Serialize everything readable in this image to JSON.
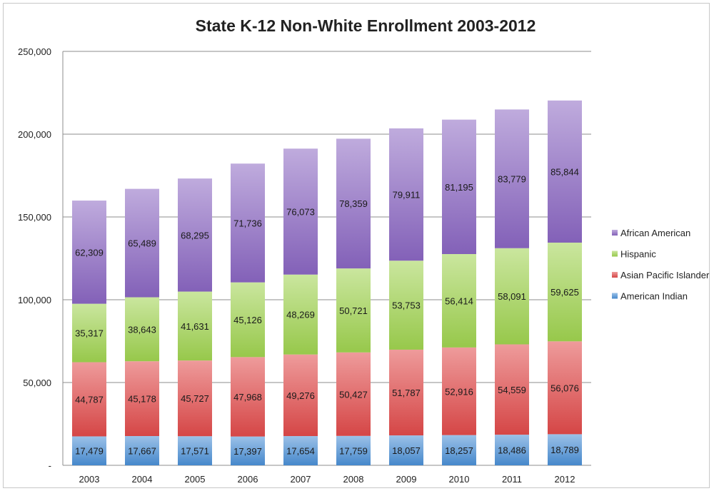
{
  "chart_data": {
    "type": "bar",
    "stacked": true,
    "title": "State K-12 Non-White Enrollment 2003-2012",
    "xlabel": "",
    "ylabel": "",
    "categories": [
      "2003",
      "2004",
      "2005",
      "2006",
      "2007",
      "2008",
      "2009",
      "2010",
      "2011",
      "2012"
    ],
    "ylim": [
      0,
      250000
    ],
    "yticks": [
      0,
      50000,
      100000,
      150000,
      200000,
      250000
    ],
    "ytick_labels": [
      "-",
      "50,000",
      "100,000",
      "150,000",
      "200,000",
      "250,000"
    ],
    "grid": true,
    "legend_position": "right",
    "series": [
      {
        "name": "American Indian",
        "color": "#4a8fd6",
        "values": [
          17479,
          17667,
          17571,
          17397,
          17654,
          17759,
          18057,
          18257,
          18486,
          18789
        ],
        "labels": [
          "17,479",
          "17,667",
          "17,571",
          "17,397",
          "17,654",
          "17,759",
          "18,057",
          "18,257",
          "18,486",
          "18,789"
        ]
      },
      {
        "name": "Asian Pacific Islander",
        "color": "#e04a4a",
        "values": [
          44787,
          45178,
          45727,
          47968,
          49276,
          50427,
          51787,
          52916,
          54559,
          56076
        ],
        "labels": [
          "44,787",
          "45,178",
          "45,727",
          "47,968",
          "49,276",
          "50,427",
          "51,787",
          "52,916",
          "54,559",
          "56,076"
        ]
      },
      {
        "name": "Hispanic",
        "color": "#9fd24f",
        "values": [
          35317,
          38643,
          41631,
          45126,
          48269,
          50721,
          53753,
          56414,
          58091,
          59625
        ],
        "labels": [
          "35,317",
          "38,643",
          "41,631",
          "45,126",
          "48,269",
          "50,721",
          "53,753",
          "56,414",
          "58,091",
          "59,625"
        ]
      },
      {
        "name": "African American",
        "color": "#8a66c2",
        "values": [
          62309,
          65489,
          68295,
          71736,
          76073,
          78359,
          79911,
          81195,
          83779,
          85844
        ],
        "labels": [
          "62,309",
          "65,489",
          "68,295",
          "71,736",
          "76,073",
          "78,359",
          "79,911",
          "81,195",
          "83,779",
          "85,844"
        ]
      }
    ],
    "legend_order": [
      "African American",
      "Hispanic",
      "Asian Pacific Islander",
      "American Indian"
    ]
  }
}
